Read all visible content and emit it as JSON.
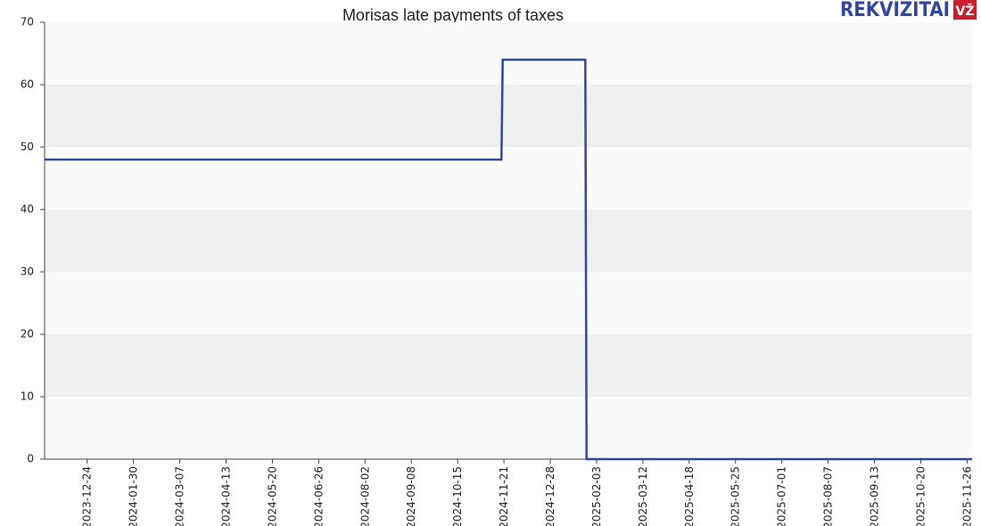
{
  "chart_data": {
    "type": "line",
    "title": "Morisas late payments of taxes",
    "x": [
      "2023-11-20",
      "2024-11-19",
      "2024-11-20",
      "2025-01-25",
      "2025-01-26",
      "2025-11-30"
    ],
    "series": [
      {
        "name": "Late payments",
        "color": "#34489a",
        "values": [
          48,
          48,
          64,
          64,
          0,
          0
        ]
      }
    ],
    "xlim": [
      "2023-11-20",
      "2025-11-30"
    ],
    "xticks": [
      "2023-12-24",
      "2024-01-30",
      "2024-03-07",
      "2024-04-13",
      "2024-05-20",
      "2024-06-26",
      "2024-08-02",
      "2024-09-08",
      "2024-10-15",
      "2024-11-21",
      "2024-12-28",
      "2025-02-03",
      "2025-03-12",
      "2025-04-18",
      "2025-05-25",
      "2025-07-01",
      "2025-08-07",
      "2025-09-13",
      "2025-10-20",
      "2025-11-26"
    ],
    "ylim": [
      0,
      70
    ],
    "yticks": [
      0,
      10,
      20,
      30,
      40,
      50,
      60,
      70
    ],
    "grid": true
  },
  "logo": {
    "text": "REKVIZITAI",
    "badge": "VŽ"
  }
}
